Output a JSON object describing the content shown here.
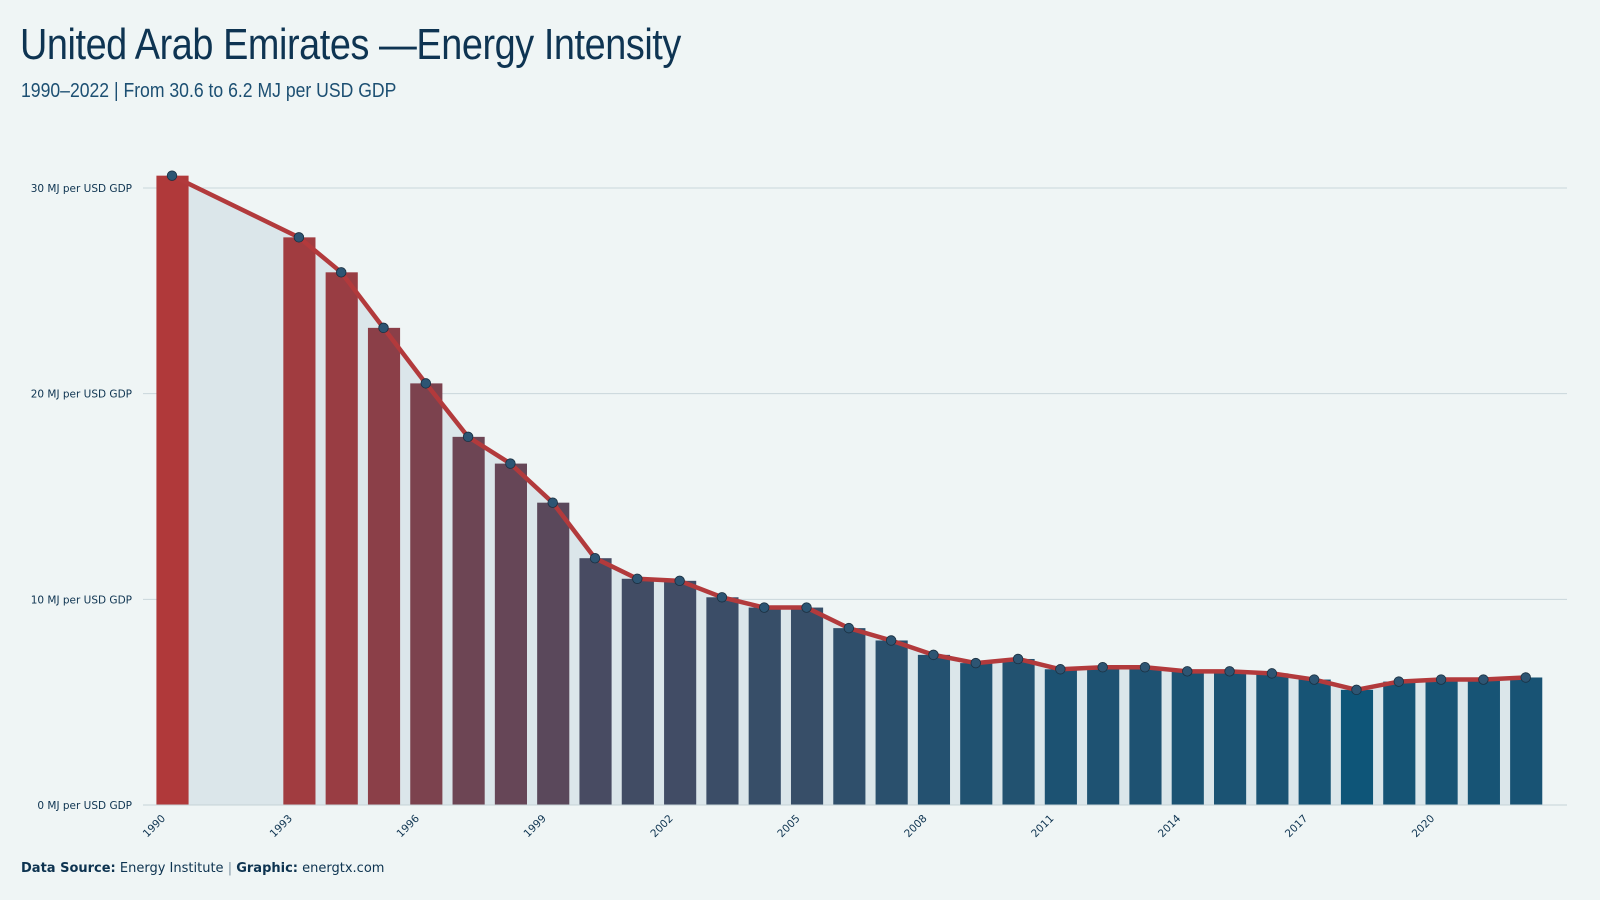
{
  "header": {
    "title": "United Arab Emirates —Energy Intensity",
    "subtitle": "1990–2022 | From 30.6 to 6.2 MJ per USD GDP"
  },
  "footer": {
    "source_label": "Data Source:",
    "source_value": "Energy Institute",
    "separator": "|",
    "graphic_label": "Graphic:",
    "graphic_value": "energtx.com"
  },
  "chart_data": {
    "type": "bar",
    "title": "United Arab Emirates —Energy Intensity",
    "subtitle": "1990–2022 | From 30.6 to 6.2 MJ per USD GDP",
    "xlabel": "",
    "ylabel": "",
    "x": [
      1990,
      1993,
      1994,
      1995,
      1996,
      1997,
      1998,
      1999,
      2000,
      2001,
      2002,
      2003,
      2004,
      2005,
      2006,
      2007,
      2008,
      2009,
      2010,
      2011,
      2012,
      2013,
      2014,
      2015,
      2016,
      2017,
      2018,
      2019,
      2020,
      2021,
      2022
    ],
    "values": [
      30.6,
      27.6,
      25.9,
      23.2,
      20.5,
      17.9,
      16.6,
      14.7,
      12.0,
      11.0,
      10.9,
      10.1,
      9.6,
      9.6,
      8.6,
      8.0,
      7.3,
      6.9,
      7.1,
      6.6,
      6.7,
      6.7,
      6.5,
      6.5,
      6.4,
      6.1,
      5.6,
      6.0,
      6.1,
      6.1,
      6.2
    ],
    "ylim": [
      0,
      30
    ],
    "y_ticks": [
      0,
      10,
      20,
      30
    ],
    "y_tick_labels": [
      "0 MJ per USD GDP",
      "10 MJ per USD GDP",
      "20 MJ per USD GDP",
      "30 MJ per USD GDP"
    ],
    "x_ticks": [
      1990,
      1993,
      1996,
      1999,
      2002,
      2005,
      2008,
      2011,
      2014,
      2017,
      2020
    ],
    "x_tick_labels": [
      "1990",
      "1993",
      "1996",
      "1999",
      "2002",
      "2005",
      "2008",
      "2011",
      "2014",
      "2017",
      "2020"
    ],
    "grid": true,
    "overlay": "line with markers",
    "colors": {
      "high": "#b0393a",
      "low": "#0e5578",
      "line": "#b23a3c",
      "marker": "#2d5573",
      "area": "#dbe6ea",
      "grid": "#c9d6da"
    }
  }
}
